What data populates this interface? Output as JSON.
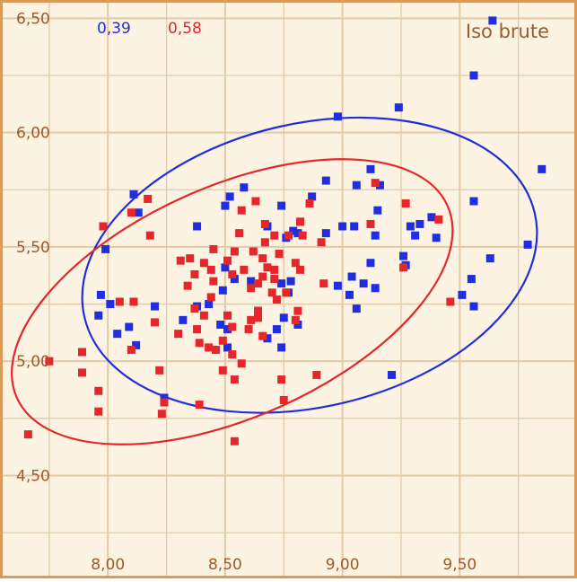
{
  "chart_data": {
    "type": "scatter",
    "title": "Iso brute",
    "corner_values": [
      {
        "text": "0,39",
        "color": "#1f2fe0"
      },
      {
        "text": "0,58",
        "color": "#e5262b"
      }
    ],
    "x_ticks": [
      {
        "value": 8.0,
        "label": "8,00"
      },
      {
        "value": 8.5,
        "label": "8,50"
      },
      {
        "value": 9.0,
        "label": "9,00"
      },
      {
        "value": 9.5,
        "label": "9,50"
      }
    ],
    "y_ticks": [
      {
        "value": 4.5,
        "label": "4,50"
      },
      {
        "value": 5.0,
        "label": "5,00"
      },
      {
        "value": 5.5,
        "label": "5,50"
      },
      {
        "value": 6.0,
        "label": "6,00"
      },
      {
        "value": 6.5,
        "label": "6,50"
      }
    ],
    "xlim": [
      7.54,
      10.0
    ],
    "ylim": [
      4.05,
      6.58
    ],
    "grid": true,
    "colors": {
      "background": "#fdf3e2",
      "grid": "#e2c9a8",
      "axis_label": "#9c5a2e",
      "frame": "#d99a5a",
      "blue": "#1f2fe0",
      "red": "#e5262b"
    },
    "series": [
      {
        "color": "#1f2fe0",
        "points": [
          [
            9.64,
            6.49
          ],
          [
            9.56,
            6.25
          ],
          [
            9.24,
            6.11
          ],
          [
            8.98,
            6.07
          ],
          [
            9.85,
            5.84
          ],
          [
            9.12,
            5.84
          ],
          [
            9.06,
            5.77
          ],
          [
            9.16,
            5.77
          ],
          [
            8.93,
            5.79
          ],
          [
            8.58,
            5.76
          ],
          [
            8.52,
            5.72
          ],
          [
            8.11,
            5.73
          ],
          [
            8.13,
            5.65
          ],
          [
            8.5,
            5.68
          ],
          [
            8.74,
            5.68
          ],
          [
            8.87,
            5.72
          ],
          [
            8.82,
            5.61
          ],
          [
            9.15,
            5.66
          ],
          [
            9.38,
            5.63
          ],
          [
            9.56,
            5.7
          ],
          [
            8.38,
            5.59
          ],
          [
            8.68,
            5.59
          ],
          [
            9.0,
            5.59
          ],
          [
            9.05,
            5.59
          ],
          [
            9.29,
            5.59
          ],
          [
            9.33,
            5.6
          ],
          [
            8.79,
            5.57
          ],
          [
            8.81,
            5.56
          ],
          [
            8.76,
            5.54
          ],
          [
            8.93,
            5.56
          ],
          [
            9.14,
            5.55
          ],
          [
            9.31,
            5.55
          ],
          [
            9.4,
            5.54
          ],
          [
            9.79,
            5.51
          ],
          [
            7.99,
            5.49
          ],
          [
            9.26,
            5.46
          ],
          [
            9.63,
            5.45
          ],
          [
            8.5,
            5.41
          ],
          [
            9.12,
            5.43
          ],
          [
            9.27,
            5.42
          ],
          [
            8.54,
            5.36
          ],
          [
            8.61,
            5.35
          ],
          [
            8.78,
            5.35
          ],
          [
            9.04,
            5.37
          ],
          [
            9.09,
            5.34
          ],
          [
            9.14,
            5.32
          ],
          [
            9.55,
            5.36
          ],
          [
            8.74,
            5.34
          ],
          [
            8.49,
            5.31
          ],
          [
            8.77,
            5.3
          ],
          [
            8.98,
            5.33
          ],
          [
            9.03,
            5.29
          ],
          [
            7.97,
            5.29
          ],
          [
            9.51,
            5.29
          ],
          [
            8.43,
            5.25
          ],
          [
            8.38,
            5.24
          ],
          [
            8.01,
            5.25
          ],
          [
            8.2,
            5.24
          ],
          [
            9.06,
            5.23
          ],
          [
            9.56,
            5.24
          ],
          [
            8.64,
            5.22
          ],
          [
            7.96,
            5.2
          ],
          [
            8.75,
            5.19
          ],
          [
            8.32,
            5.18
          ],
          [
            8.48,
            5.16
          ],
          [
            8.51,
            5.14
          ],
          [
            8.72,
            5.14
          ],
          [
            8.09,
            5.15
          ],
          [
            8.81,
            5.16
          ],
          [
            8.04,
            5.12
          ],
          [
            8.68,
            5.1
          ],
          [
            8.51,
            5.06
          ],
          [
            8.74,
            5.06
          ],
          [
            8.12,
            5.07
          ],
          [
            9.21,
            4.94
          ],
          [
            8.24,
            4.84
          ]
        ]
      },
      {
        "color": "#e5262b",
        "points": [
          [
            9.14,
            5.78
          ],
          [
            8.17,
            5.71
          ],
          [
            8.63,
            5.7
          ],
          [
            8.57,
            5.66
          ],
          [
            8.86,
            5.69
          ],
          [
            9.27,
            5.69
          ],
          [
            8.1,
            5.65
          ],
          [
            8.82,
            5.61
          ],
          [
            9.41,
            5.62
          ],
          [
            7.98,
            5.59
          ],
          [
            8.67,
            5.6
          ],
          [
            9.12,
            5.6
          ],
          [
            8.56,
            5.56
          ],
          [
            8.77,
            5.55
          ],
          [
            8.71,
            5.55
          ],
          [
            8.83,
            5.55
          ],
          [
            8.18,
            5.55
          ],
          [
            8.67,
            5.52
          ],
          [
            8.91,
            5.52
          ],
          [
            8.45,
            5.49
          ],
          [
            8.62,
            5.48
          ],
          [
            8.54,
            5.48
          ],
          [
            8.73,
            5.47
          ],
          [
            8.35,
            5.45
          ],
          [
            8.31,
            5.44
          ],
          [
            8.51,
            5.44
          ],
          [
            8.66,
            5.45
          ],
          [
            8.8,
            5.43
          ],
          [
            8.41,
            5.43
          ],
          [
            8.58,
            5.4
          ],
          [
            8.68,
            5.41
          ],
          [
            8.44,
            5.4
          ],
          [
            8.71,
            5.4
          ],
          [
            8.82,
            5.4
          ],
          [
            9.26,
            5.41
          ],
          [
            8.37,
            5.38
          ],
          [
            8.53,
            5.38
          ],
          [
            8.66,
            5.37
          ],
          [
            8.71,
            5.36
          ],
          [
            8.45,
            5.35
          ],
          [
            8.64,
            5.34
          ],
          [
            8.92,
            5.34
          ],
          [
            8.34,
            5.33
          ],
          [
            8.61,
            5.32
          ],
          [
            8.7,
            5.3
          ],
          [
            8.76,
            5.3
          ],
          [
            8.44,
            5.28
          ],
          [
            8.72,
            5.27
          ],
          [
            8.05,
            5.26
          ],
          [
            8.11,
            5.26
          ],
          [
            9.46,
            5.26
          ],
          [
            8.37,
            5.23
          ],
          [
            8.64,
            5.22
          ],
          [
            8.81,
            5.22
          ],
          [
            8.51,
            5.2
          ],
          [
            8.41,
            5.2
          ],
          [
            8.64,
            5.19
          ],
          [
            8.61,
            5.18
          ],
          [
            8.8,
            5.18
          ],
          [
            8.2,
            5.17
          ],
          [
            8.38,
            5.14
          ],
          [
            8.53,
            5.15
          ],
          [
            8.6,
            5.14
          ],
          [
            8.3,
            5.12
          ],
          [
            8.66,
            5.11
          ],
          [
            8.49,
            5.09
          ],
          [
            8.39,
            5.08
          ],
          [
            8.43,
            5.06
          ],
          [
            8.46,
            5.05
          ],
          [
            8.1,
            5.05
          ],
          [
            8.53,
            5.03
          ],
          [
            7.89,
            5.04
          ],
          [
            7.75,
            5.0
          ],
          [
            8.57,
            4.99
          ],
          [
            8.22,
            4.96
          ],
          [
            8.49,
            4.96
          ],
          [
            7.89,
            4.95
          ],
          [
            8.54,
            4.92
          ],
          [
            8.74,
            4.92
          ],
          [
            8.89,
            4.94
          ],
          [
            7.96,
            4.87
          ],
          [
            8.24,
            4.82
          ],
          [
            8.39,
            4.81
          ],
          [
            7.96,
            4.78
          ],
          [
            8.75,
            4.83
          ],
          [
            8.23,
            4.77
          ],
          [
            7.66,
            4.68
          ],
          [
            8.54,
            4.65
          ]
        ]
      }
    ],
    "ellipses": [
      {
        "color": "#1f2fe0",
        "center": [
          8.86,
          5.42
        ],
        "rx": 0.985,
        "ry": 0.62,
        "angle_deg": 13
      },
      {
        "color": "#e5262b",
        "center": [
          8.53,
          5.26
        ],
        "rx": 1.005,
        "ry": 0.505,
        "angle_deg": 24
      }
    ]
  }
}
